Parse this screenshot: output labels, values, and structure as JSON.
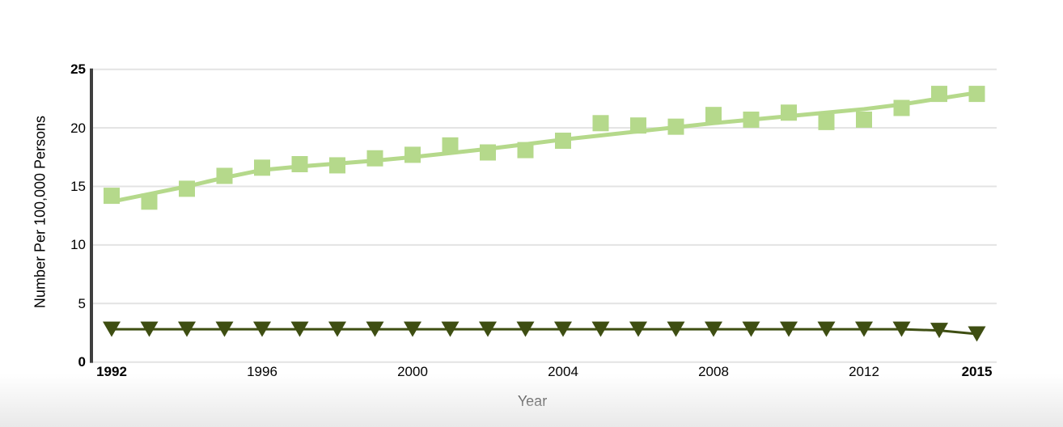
{
  "colors": {
    "background": "#ffffff",
    "axis": "#3f3f3f",
    "grid": "#e3e3e3",
    "text": "#000000",
    "light_green": "#b5d98b",
    "dark_green": "#3e4e12",
    "bottom_gradient": "#e9e9e9"
  },
  "chart_data": {
    "type": "line",
    "title": "",
    "xlabel": "Year",
    "ylabel": "Number Per 100,000 Persons",
    "ylim": [
      0,
      25
    ],
    "grid": true,
    "legend": "none",
    "years": [
      1992,
      1993,
      1994,
      1995,
      1996,
      1997,
      1998,
      1999,
      2000,
      2001,
      2002,
      2003,
      2004,
      2005,
      2006,
      2007,
      2008,
      2009,
      2010,
      2011,
      2012,
      2013,
      2014,
      2015
    ],
    "x_ticks": [
      {
        "year": 1992,
        "label": "1992",
        "bold": true
      },
      {
        "year": 1996,
        "label": "1996",
        "bold": false
      },
      {
        "year": 2000,
        "label": "2000",
        "bold": false
      },
      {
        "year": 2004,
        "label": "2004",
        "bold": false
      },
      {
        "year": 2008,
        "label": "2008",
        "bold": false
      },
      {
        "year": 2012,
        "label": "2012",
        "bold": false
      },
      {
        "year": 2015,
        "label": "2015",
        "bold": true
      }
    ],
    "y_ticks": [
      {
        "value": 0,
        "label": "0",
        "bold": true
      },
      {
        "value": 5,
        "label": "5",
        "bold": false
      },
      {
        "value": 10,
        "label": "10",
        "bold": false
      },
      {
        "value": 15,
        "label": "15",
        "bold": false
      },
      {
        "value": 20,
        "label": "20",
        "bold": false
      },
      {
        "value": 25,
        "label": "25",
        "bold": true
      }
    ],
    "series": [
      {
        "id": "series1",
        "marker": "square",
        "color": "#b5d98b",
        "connect_points": false,
        "values": [
          14.2,
          13.7,
          14.8,
          15.9,
          16.6,
          16.9,
          16.8,
          17.4,
          17.7,
          18.5,
          17.9,
          18.1,
          18.9,
          20.4,
          20.2,
          20.1,
          21.1,
          20.7,
          21.3,
          20.5,
          20.7,
          21.7,
          22.9,
          22.9
        ]
      },
      {
        "id": "series2",
        "marker": "triangle-down",
        "color": "#3e4e12",
        "connect_points": true,
        "values": [
          2.8,
          2.8,
          2.8,
          2.8,
          2.8,
          2.8,
          2.8,
          2.8,
          2.8,
          2.8,
          2.8,
          2.8,
          2.8,
          2.8,
          2.8,
          2.8,
          2.8,
          2.8,
          2.8,
          2.8,
          2.8,
          2.8,
          2.7,
          2.4
        ]
      }
    ],
    "trend_line": {
      "for_series": "series1",
      "color": "#b5d98b",
      "values": [
        13.7,
        14.35,
        15.0,
        15.75,
        16.4,
        16.7,
        16.95,
        17.2,
        17.5,
        17.85,
        18.2,
        18.6,
        19.0,
        19.35,
        19.7,
        20.05,
        20.4,
        20.7,
        21.0,
        21.3,
        21.6,
        22.0,
        22.5,
        23.0
      ]
    }
  }
}
